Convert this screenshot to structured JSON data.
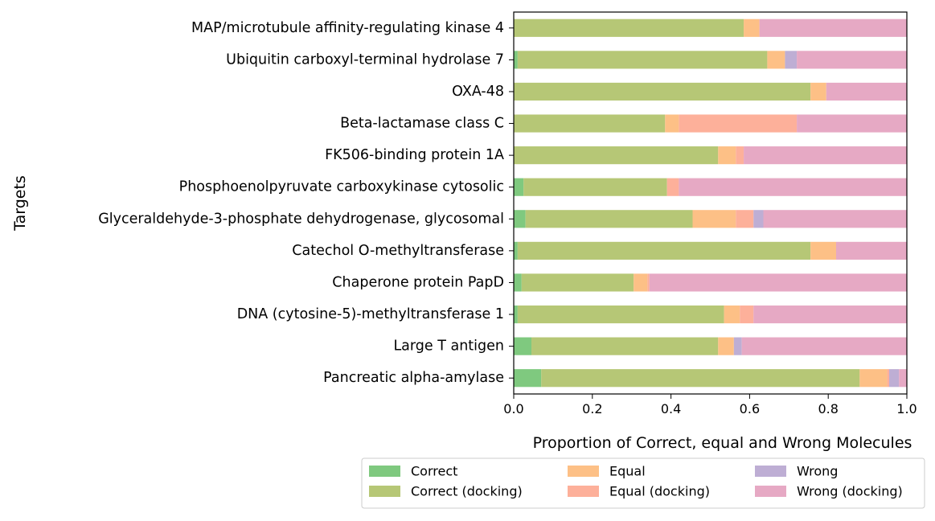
{
  "chart_data": {
    "type": "bar",
    "orientation": "horizontal",
    "stacked": true,
    "title": "",
    "xlabel": "Proportion of Correct, equal and Wrong Molecules",
    "ylabel": "Targets",
    "xlim": [
      0.0,
      1.0
    ],
    "xticks": [
      "0.0",
      "0.2",
      "0.4",
      "0.6",
      "0.8",
      "1.0"
    ],
    "grid": false,
    "legend_position": "bottom-right (below plot)",
    "categories": [
      "MAP/microtubule affinity-regulating kinase 4",
      "Ubiquitin carboxyl-terminal hydrolase 7",
      "OXA-48",
      "Beta-lactamase class C",
      "FK506-binding protein 1A",
      "Phosphoenolpyruvate carboxykinase cytosolic",
      "Glyceraldehyde-3-phosphate dehydrogenase, glycosomal",
      "Catechol O-methyltransferase",
      "Chaperone protein PapD",
      "DNA (cytosine-5)-methyltransferase 1",
      "Large T antigen",
      "Pancreatic alpha-amylase"
    ],
    "series": [
      {
        "name": "Correct",
        "color": "#7fc97f",
        "values": [
          0.0,
          0.01,
          0.0,
          0.0,
          0.0,
          0.025,
          0.03,
          0.01,
          0.02,
          0.01,
          0.045,
          0.07
        ]
      },
      {
        "name": "Correct (docking)",
        "color": "#b6c776",
        "values": [
          0.585,
          0.635,
          0.755,
          0.385,
          0.52,
          0.365,
          0.425,
          0.745,
          0.285,
          0.525,
          0.475,
          0.81
        ]
      },
      {
        "name": "Equal",
        "color": "#fdc086",
        "values": [
          0.04,
          0.045,
          0.04,
          0.035,
          0.045,
          0.0,
          0.11,
          0.065,
          0.035,
          0.04,
          0.04,
          0.07
        ]
      },
      {
        "name": "Equal (docking)",
        "color": "#fdb09a",
        "values": [
          0.0,
          0.0,
          0.0,
          0.3,
          0.02,
          0.03,
          0.045,
          0.0,
          0.005,
          0.035,
          0.0,
          0.005
        ]
      },
      {
        "name": "Wrong",
        "color": "#beaed4",
        "values": [
          0.0,
          0.03,
          0.0,
          0.0,
          0.0,
          0.0,
          0.025,
          0.0,
          0.0,
          0.0,
          0.02,
          0.025
        ]
      },
      {
        "name": "Wrong (docking)",
        "color": "#e6a9c4",
        "values": [
          0.375,
          0.28,
          0.205,
          0.28,
          0.415,
          0.58,
          0.365,
          0.18,
          0.655,
          0.39,
          0.42,
          0.02
        ]
      }
    ]
  }
}
